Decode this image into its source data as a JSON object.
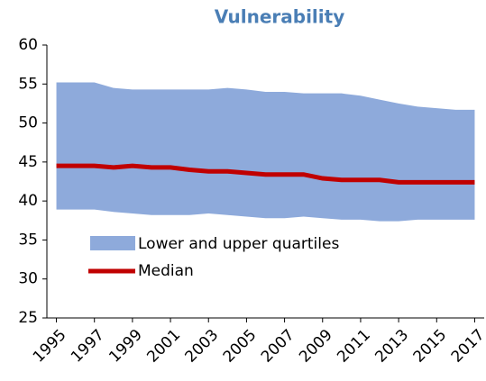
{
  "chart_data": {
    "type": "band-line",
    "title": "Vulnerability",
    "x": [
      1995,
      1996,
      1997,
      1998,
      1999,
      2000,
      2001,
      2002,
      2003,
      2004,
      2005,
      2006,
      2007,
      2008,
      2009,
      2010,
      2011,
      2012,
      2013,
      2014,
      2015,
      2016,
      2017
    ],
    "xlim": [
      1994.5,
      2017.5
    ],
    "xticks": [
      1995,
      1997,
      1999,
      2001,
      2003,
      2005,
      2007,
      2009,
      2011,
      2013,
      2015,
      2017
    ],
    "ylim": [
      25,
      60
    ],
    "yticks": [
      25,
      30,
      35,
      40,
      45,
      50,
      55,
      60
    ],
    "series": [
      {
        "name": "Lower and upper quartiles",
        "color": "#8eaadb",
        "upper": [
          55.2,
          55.2,
          55.2,
          54.5,
          54.3,
          54.3,
          54.3,
          54.3,
          54.3,
          54.5,
          54.3,
          54.0,
          54.0,
          53.8,
          53.8,
          53.8,
          53.5,
          53.0,
          52.5,
          52.1,
          51.9,
          51.7,
          51.7
        ],
        "lower": [
          38.9,
          38.9,
          38.9,
          38.6,
          38.4,
          38.2,
          38.2,
          38.2,
          38.4,
          38.2,
          38.0,
          37.8,
          37.8,
          38.0,
          37.8,
          37.6,
          37.6,
          37.4,
          37.4,
          37.6,
          37.6,
          37.6,
          37.6
        ]
      },
      {
        "name": "Median",
        "color": "#c00000",
        "values": [
          44.5,
          44.5,
          44.5,
          44.3,
          44.5,
          44.3,
          44.3,
          44.0,
          43.8,
          43.8,
          43.6,
          43.4,
          43.4,
          43.4,
          42.9,
          42.7,
          42.7,
          42.7,
          42.4,
          42.4,
          42.4,
          42.4,
          42.4
        ]
      }
    ]
  }
}
